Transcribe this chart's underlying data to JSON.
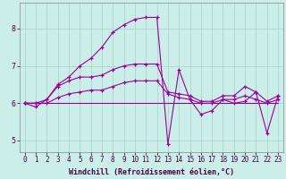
{
  "xlabel": "Windchill (Refroidissement éolien,°C)",
  "background_color": "#cceee8",
  "grid_color": "#aad8d0",
  "line_color": "#990099",
  "x_hours": [
    0,
    1,
    2,
    3,
    4,
    5,
    6,
    7,
    8,
    9,
    10,
    11,
    12,
    13,
    14,
    15,
    16,
    17,
    18,
    19,
    20,
    21,
    22,
    23
  ],
  "series1": [
    6.0,
    5.9,
    6.1,
    6.5,
    6.7,
    7.0,
    7.2,
    7.5,
    7.9,
    8.1,
    8.25,
    8.3,
    8.3,
    4.9,
    6.9,
    6.1,
    5.7,
    5.8,
    6.1,
    6.0,
    6.05,
    6.3,
    5.2,
    6.2
  ],
  "series2": [
    6.0,
    6.0,
    6.0,
    6.0,
    6.0,
    6.0,
    6.0,
    6.0,
    6.0,
    6.0,
    6.0,
    6.0,
    6.0,
    6.0,
    6.0,
    6.0,
    6.0,
    6.0,
    6.0,
    6.0,
    6.0,
    6.0,
    6.0,
    6.0
  ],
  "series3": [
    6.0,
    6.0,
    6.1,
    6.45,
    6.6,
    6.7,
    6.7,
    6.75,
    6.9,
    7.0,
    7.05,
    7.05,
    7.05,
    6.3,
    6.25,
    6.2,
    6.05,
    6.05,
    6.2,
    6.2,
    6.45,
    6.3,
    6.05,
    6.2
  ],
  "series4": [
    6.0,
    6.0,
    6.0,
    6.15,
    6.25,
    6.3,
    6.35,
    6.35,
    6.45,
    6.55,
    6.6,
    6.6,
    6.6,
    6.25,
    6.15,
    6.1,
    6.0,
    6.0,
    6.1,
    6.1,
    6.2,
    6.1,
    6.0,
    6.1
  ],
  "ylim": [
    4.7,
    8.7
  ],
  "yticks": [
    5,
    6,
    7,
    8
  ],
  "label_fontsize": 5.5,
  "tick_fontsize": 5.5
}
